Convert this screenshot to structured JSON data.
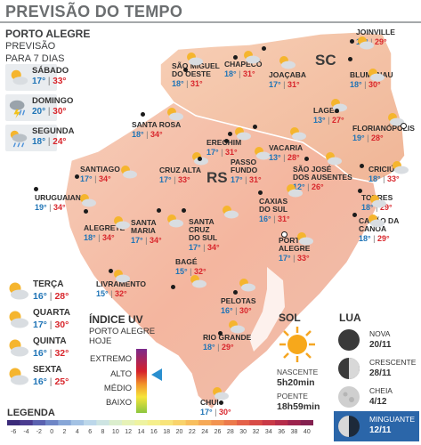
{
  "header": {
    "title": "PREVISÃO DO TEMPO"
  },
  "poa": {
    "city": "PORTO ALEGRE",
    "line1": "PREVISÃO",
    "line2": "PARA 7 DIAS"
  },
  "days_top": [
    {
      "name": "SÁBADO",
      "min": "17°",
      "max": "33°",
      "icon": "sun-cloud-icon"
    },
    {
      "name": "DOMINGO",
      "min": "20°",
      "max": "30°",
      "icon": "storm-icon"
    },
    {
      "name": "SEGUNDA",
      "min": "18°",
      "max": "24°",
      "icon": "rain-sun-icon"
    }
  ],
  "days_bottom": [
    {
      "name": "TERÇA",
      "min": "16°",
      "max": "28°",
      "icon": "sun-cloud-icon"
    },
    {
      "name": "QUARTA",
      "min": "17°",
      "max": "30°",
      "icon": "sun-cloud-icon"
    },
    {
      "name": "QUINTA",
      "min": "16°",
      "max": "32°",
      "icon": "sun-cloud-icon"
    },
    {
      "name": "SEXTA",
      "min": "16°",
      "max": "25°",
      "icon": "sun-cloud-icon"
    }
  ],
  "states": {
    "sc": "SC",
    "rs": "RS"
  },
  "cities": [
    {
      "name": "SÃO MIGUEL\nDO OESTE",
      "min": "18°",
      "max": "31°"
    },
    {
      "name": "CHAPECÓ",
      "min": "18°",
      "max": "31°"
    },
    {
      "name": "JOAÇABA",
      "min": "17°",
      "max": "31°"
    },
    {
      "name": "JOINVILLE",
      "min": "19°",
      "max": "29°"
    },
    {
      "name": "BLUMENAU",
      "min": "18°",
      "max": "30°"
    },
    {
      "name": "LAGES",
      "min": "13°",
      "max": "27°"
    },
    {
      "name": "FLORIANÓPOLIS",
      "min": "19°",
      "max": "28°"
    },
    {
      "name": "SANTA ROSA",
      "min": "18°",
      "max": "34°"
    },
    {
      "name": "ERECHIM",
      "min": "17°",
      "max": "31°"
    },
    {
      "name": "PASSO\nFUNDO",
      "min": "17°",
      "max": "31°"
    },
    {
      "name": "VACARIA",
      "min": "13°",
      "max": "28°"
    },
    {
      "name": "SÃO JOSÉ\nDOS AUSENTES",
      "min": "12°",
      "max": "26°"
    },
    {
      "name": "CRICIÚMA",
      "min": "18°",
      "max": "33°"
    },
    {
      "name": "SANTIAGO",
      "min": "17°",
      "max": "34°"
    },
    {
      "name": "CRUZ ALTA",
      "min": "17°",
      "max": "33°"
    },
    {
      "name": "URUGUAIANA",
      "min": "19°",
      "max": "34°"
    },
    {
      "name": "TORRES",
      "min": "18°",
      "max": "29°"
    },
    {
      "name": "CAXIAS\nDO SUL",
      "min": "16°",
      "max": "31°"
    },
    {
      "name": "CAPÃO DA\nCANOA",
      "min": "18°",
      "max": "29°"
    },
    {
      "name": "ALEGRETE",
      "min": "18°",
      "max": "34°"
    },
    {
      "name": "SANTA\nMARIA",
      "min": "17°",
      "max": "34°"
    },
    {
      "name": "SANTA\nCRUZ\nDO SUL",
      "min": "17°",
      "max": "34°"
    },
    {
      "name": "PORTO\nALEGRE",
      "min": "17°",
      "max": "33°"
    },
    {
      "name": "LIVRAMENTO",
      "min": "15°",
      "max": "32°"
    },
    {
      "name": "BAGÉ",
      "min": "15°",
      "max": "32°"
    },
    {
      "name": "PELOTAS",
      "min": "16°",
      "max": "30°"
    },
    {
      "name": "RIO GRANDE",
      "min": "18°",
      "max": "29°"
    },
    {
      "name": "CHUÍ",
      "min": "17°",
      "max": "30°"
    }
  ],
  "uv": {
    "title": "ÍNDICE UV",
    "sub1": "PORTO ALEGRE",
    "sub2": "HOJE",
    "levels": [
      "EXTREMO",
      "ALTO",
      "MÉDIO",
      "BAIXO"
    ],
    "current": "ALTO"
  },
  "sol": {
    "title": "SOL",
    "sunrise_label": "NASCENTE",
    "sunrise": "5h20min",
    "sunset_label": "POENTE",
    "sunset": "18h59min"
  },
  "lua": {
    "title": "LUA",
    "phases": [
      {
        "name": "NOVA",
        "date": "20/11"
      },
      {
        "name": "CRESCENTE",
        "date": "28/11"
      },
      {
        "name": "CHEIA",
        "date": "4/12"
      },
      {
        "name": "MINGUANTE",
        "date": "12/11",
        "active": true
      }
    ]
  },
  "legend": {
    "title": "LEGENDA",
    "ticks": [
      "-6",
      "-4",
      "-2",
      "0",
      "2",
      "4",
      "6",
      "8",
      "10",
      "12",
      "14",
      "16",
      "18",
      "20",
      "22",
      "24",
      "26",
      "28",
      "30",
      "32",
      "34",
      "36",
      "38",
      "40"
    ]
  },
  "colors": {
    "min": "#1f74b6",
    "max": "#d8262c",
    "sea": "#ffffff",
    "sc_land": "#f6c6a9",
    "rs_land": "#f2b9a4"
  }
}
